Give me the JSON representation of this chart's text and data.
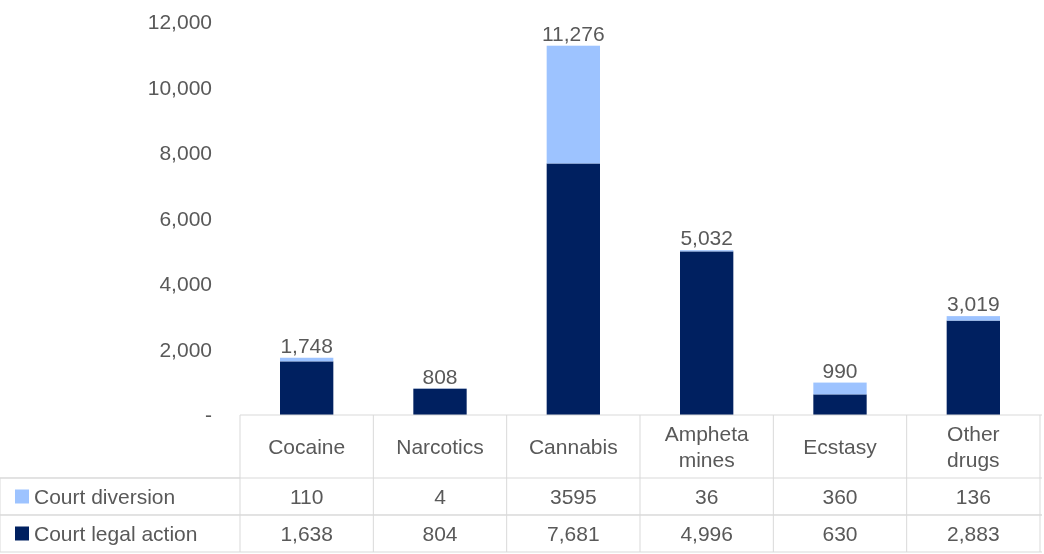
{
  "chart_data": {
    "type": "bar",
    "stacked": true,
    "categories": [
      "Cocaine",
      "Narcotics",
      "Cannabis",
      "Ampheta mines",
      "Ecstasy",
      "Other drugs"
    ],
    "series": [
      {
        "name": "Court legal action",
        "color": "#002060",
        "values": [
          1638,
          804,
          7681,
          4996,
          630,
          2883
        ],
        "value_labels": [
          "1,638",
          "804",
          "7,681",
          "4,996",
          "630",
          "2,883"
        ]
      },
      {
        "name": "Court diversion",
        "color": "#9dc3ff",
        "values": [
          110,
          4,
          3595,
          36,
          360,
          136
        ],
        "value_labels": [
          "110",
          "4",
          "3595",
          "36",
          "360",
          "136"
        ]
      }
    ],
    "totals": [
      "1,748",
      "808",
      "11,276",
      "5,032",
      "990",
      "3,019"
    ],
    "ylim": [
      0,
      12000
    ],
    "yticks": [
      {
        "value": 0,
        "label": "-"
      },
      {
        "value": 2000,
        "label": "2,000"
      },
      {
        "value": 4000,
        "label": "4,000"
      },
      {
        "value": 6000,
        "label": "6,000"
      },
      {
        "value": 8000,
        "label": "8,000"
      },
      {
        "value": 10000,
        "label": "10,000"
      },
      {
        "value": 12000,
        "label": "12,000"
      }
    ],
    "grid": false,
    "legend": "bottom"
  }
}
